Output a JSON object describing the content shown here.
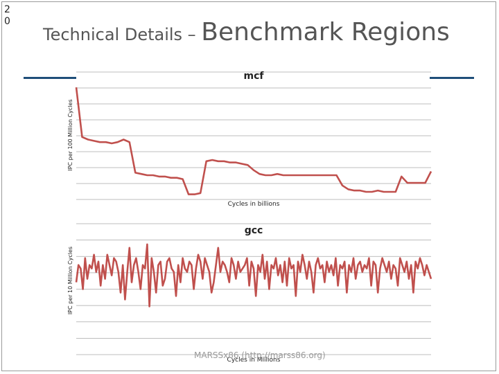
{
  "slide": {
    "number": "20",
    "title_prefix": "Technical Details – ",
    "title_main": "Benchmark Regions",
    "footer": "MARSSx86 (http://marss86.org)"
  },
  "colors": {
    "series": "#c0504d",
    "grid": "#a6a6a6",
    "rule": "#1f4e79",
    "text": "#555555"
  },
  "chart_data": [
    {
      "type": "line",
      "title": "mcf",
      "xlabel": "Cycles in billions",
      "ylabel": "IPC per 100 Million Cycles",
      "grid": true,
      "legend": "none",
      "x": [
        0,
        1,
        2,
        3,
        4,
        5,
        6,
        7,
        8,
        9,
        10,
        11,
        12,
        13,
        14,
        15,
        16,
        17,
        18,
        19,
        20,
        21,
        22,
        23,
        24,
        25,
        26,
        27,
        28,
        29,
        30,
        31,
        32,
        33,
        34,
        35,
        36,
        37,
        38,
        39,
        40,
        41,
        42,
        43,
        44,
        45,
        46,
        47,
        48,
        49,
        50,
        51,
        52,
        53,
        54,
        55,
        56,
        57,
        58,
        59,
        60
      ],
      "series": [
        {
          "values": [
            0.88,
            0.49,
            0.47,
            0.46,
            0.45,
            0.45,
            0.44,
            0.45,
            0.47,
            0.45,
            0.21,
            0.2,
            0.19,
            0.19,
            0.18,
            0.18,
            0.17,
            0.17,
            0.16,
            0.04,
            0.04,
            0.05,
            0.3,
            0.31,
            0.3,
            0.3,
            0.29,
            0.29,
            0.28,
            0.27,
            0.23,
            0.2,
            0.19,
            0.19,
            0.2,
            0.19,
            0.19,
            0.19,
            0.19,
            0.19,
            0.19,
            0.19,
            0.19,
            0.19,
            0.19,
            0.11,
            0.08,
            0.07,
            0.07,
            0.06,
            0.06,
            0.07,
            0.06,
            0.06,
            0.06,
            0.18,
            0.13,
            0.13,
            0.13,
            0.13,
            0.22
          ]
        }
      ]
    },
    {
      "type": "line",
      "title": "gcc",
      "xlabel": "Cycles in Millions",
      "ylabel": "IPC per 10 Million Cycles",
      "grid": true,
      "legend": "none",
      "x": [
        0,
        5,
        10,
        15,
        20,
        25,
        30,
        35,
        40,
        45,
        50,
        55,
        60,
        65,
        70,
        75,
        80,
        85,
        90,
        95,
        100,
        105,
        110,
        115,
        120,
        125,
        130,
        135,
        140,
        145,
        150,
        155,
        160,
        165,
        170,
        175,
        180,
        185,
        190,
        195,
        200,
        205,
        210,
        215,
        220,
        225,
        230,
        235,
        240,
        245,
        250,
        255,
        260,
        265,
        270,
        275,
        280,
        285,
        290,
        295,
        300,
        305,
        310,
        315,
        320,
        325,
        330,
        335,
        340,
        345,
        350,
        355,
        360,
        365,
        370,
        375,
        380,
        385,
        390,
        395,
        400,
        405,
        410,
        415,
        420,
        425,
        430,
        435,
        440,
        445,
        450,
        455,
        460,
        465,
        470,
        475,
        480,
        485,
        490,
        495,
        500,
        505,
        510,
        515,
        520,
        525,
        530,
        535,
        540,
        545,
        550,
        555,
        560,
        565,
        570,
        575,
        580,
        585,
        590,
        595,
        600,
        605,
        610,
        615,
        620,
        625,
        630,
        635,
        640,
        645,
        650,
        655,
        660,
        665,
        670,
        675,
        680,
        685,
        690,
        695,
        700,
        705,
        710,
        715,
        720,
        725,
        730,
        735,
        740,
        745,
        750,
        755,
        760,
        765,
        770,
        775,
        780,
        785,
        790,
        795,
        800
      ],
      "series": [
        {
          "values": [
            1.05,
            1.3,
            1.25,
            0.95,
            1.4,
            1.1,
            1.3,
            1.25,
            1.45,
            1.2,
            1.35,
            1.0,
            1.3,
            1.1,
            1.45,
            1.3,
            1.15,
            1.4,
            1.35,
            1.2,
            0.9,
            1.3,
            0.8,
            1.2,
            1.55,
            1.05,
            1.3,
            1.4,
            1.2,
            0.95,
            1.3,
            1.25,
            1.6,
            0.7,
            1.4,
            1.2,
            0.9,
            1.3,
            1.35,
            1.0,
            1.1,
            1.35,
            1.4,
            1.25,
            1.2,
            0.85,
            1.3,
            1.05,
            1.4,
            1.25,
            1.2,
            1.35,
            1.3,
            0.95,
            1.25,
            1.45,
            1.35,
            1.1,
            1.4,
            1.3,
            1.2,
            0.9,
            1.05,
            1.3,
            1.55,
            1.2,
            1.35,
            1.3,
            1.2,
            1.05,
            1.4,
            1.3,
            1.1,
            1.35,
            1.2,
            1.25,
            1.3,
            1.4,
            1.0,
            1.35,
            1.25,
            0.85,
            1.3,
            1.2,
            1.45,
            1.1,
            1.35,
            0.95,
            1.3,
            1.25,
            1.4,
            1.15,
            1.3,
            1.05,
            1.35,
            1.0,
            1.4,
            1.25,
            1.3,
            0.85,
            1.35,
            1.2,
            1.45,
            1.3,
            1.1,
            1.35,
            1.2,
            0.9,
            1.3,
            1.4,
            1.25,
            1.3,
            1.05,
            1.35,
            1.2,
            1.3,
            1.15,
            1.4,
            1.0,
            1.3,
            1.25,
            1.35,
            0.9,
            1.3,
            1.2,
            1.4,
            1.1,
            1.3,
            1.35,
            1.2,
            1.3,
            1.25,
            1.4,
            1.0,
            1.35,
            1.3,
            0.9,
            1.25,
            1.4,
            1.3,
            1.2,
            1.35,
            1.1,
            1.3,
            1.25,
            1.0,
            1.4,
            1.3,
            1.2,
            1.35,
            1.1,
            1.3,
            0.9,
            1.35,
            1.25,
            1.4,
            1.3,
            1.15,
            1.3,
            1.2,
            1.1
          ]
        }
      ]
    }
  ]
}
